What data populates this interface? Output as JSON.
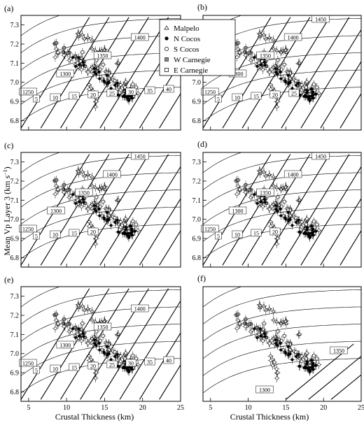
{
  "figure": {
    "ylabel": "Mean Vp Layer 3 (km s",
    "ylabel_sup": "−1",
    "ylabel_end": ")",
    "xlabel": "Crustal Thickness (km)"
  },
  "legend": {
    "position": "top-center",
    "entries": [
      {
        "label": "Malpelo",
        "marker": "triangle-open"
      },
      {
        "label": "N Cocos",
        "marker": "circle-filled"
      },
      {
        "label": "S Cocos",
        "marker": "circle-open"
      },
      {
        "label": "W Carnegie",
        "marker": "square-gray"
      },
      {
        "label": "E Carnegie",
        "marker": "square-open"
      }
    ]
  },
  "chart_data": [
    {
      "panel": "(a)",
      "type": "scatter",
      "xlim": [
        4,
        25
      ],
      "ylim": [
        6.75,
        7.35
      ],
      "xticks": [
        5,
        10,
        15,
        20,
        25
      ],
      "yticks": [
        6.8,
        6.9,
        7.0,
        7.1,
        7.2,
        7.3
      ],
      "temperature_labels": [
        "1250",
        "1300",
        "1350",
        "1400"
      ],
      "thickness_labels": [
        "5",
        "10",
        "15",
        "20",
        "25",
        "30",
        "35",
        "40"
      ]
    },
    {
      "panel": "(b)",
      "type": "scatter",
      "xlim": [
        4,
        25
      ],
      "ylim": [
        6.75,
        7.35
      ],
      "xticks": [
        5,
        10,
        15,
        20,
        25
      ],
      "yticks": [
        6.8,
        6.9,
        7.0,
        7.1,
        7.2,
        7.3
      ],
      "temperature_labels": [
        "1250",
        "1300",
        "1350",
        "1400",
        "1450"
      ],
      "thickness_labels": [
        "5",
        "10",
        "15",
        "20",
        "25"
      ]
    },
    {
      "panel": "(c)",
      "type": "scatter",
      "xlim": [
        4,
        25
      ],
      "ylim": [
        6.75,
        7.35
      ],
      "xticks": [
        5,
        10,
        15,
        20,
        25
      ],
      "yticks": [
        6.8,
        6.9,
        7.0,
        7.1,
        7.2,
        7.3
      ],
      "temperature_labels": [
        "1250",
        "1300",
        "1350",
        "1400",
        "1450"
      ],
      "thickness_labels": [
        "5",
        "10",
        "15",
        "20"
      ]
    },
    {
      "panel": "(d)",
      "type": "scatter",
      "xlim": [
        4,
        25
      ],
      "ylim": [
        6.75,
        7.35
      ],
      "xticks": [
        5,
        10,
        15,
        20,
        25
      ],
      "yticks": [
        6.8,
        6.9,
        7.0,
        7.1,
        7.2,
        7.3
      ],
      "temperature_labels": [
        "1250",
        "1300",
        "1350",
        "1400",
        "1450"
      ],
      "thickness_labels": [
        "5",
        "10",
        "15",
        "20"
      ]
    },
    {
      "panel": "(e)",
      "type": "scatter",
      "xlim": [
        4,
        25
      ],
      "ylim": [
        6.75,
        7.35
      ],
      "xticks": [
        5,
        10,
        15,
        20,
        25
      ],
      "yticks": [
        6.8,
        6.9,
        7.0,
        7.1,
        7.2,
        7.3
      ],
      "temperature_labels": [
        "1250",
        "1300",
        "1350",
        "1400"
      ],
      "thickness_labels": [
        "5",
        "10",
        "15",
        "20",
        "25",
        "30",
        "35",
        "40"
      ]
    },
    {
      "panel": "(f)",
      "type": "scatter",
      "xlim": [
        4,
        25
      ],
      "ylim": [
        6.75,
        7.35
      ],
      "xticks": [
        5,
        10,
        15,
        20,
        25
      ],
      "yticks": [],
      "temperature_labels": [
        "1300",
        "1350"
      ],
      "thickness_labels": []
    }
  ]
}
